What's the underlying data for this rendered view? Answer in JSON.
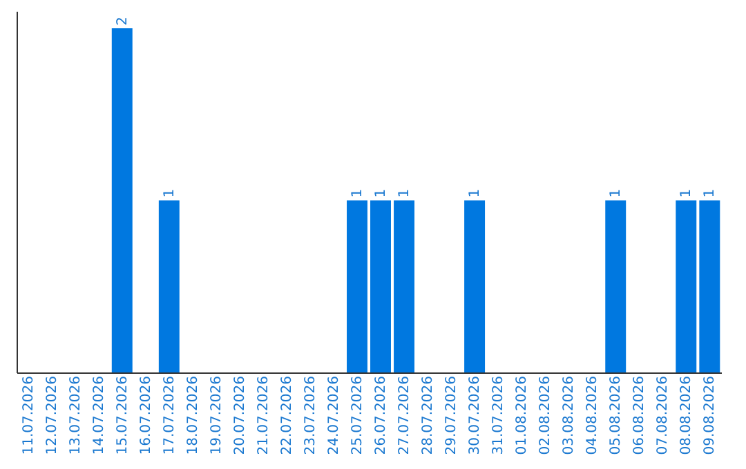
{
  "chart_data": {
    "type": "bar",
    "categories": [
      "11.07.2026",
      "12.07.2026",
      "13.07.2026",
      "14.07.2026",
      "15.07.2026",
      "16.07.2026",
      "17.07.2026",
      "18.07.2026",
      "19.07.2026",
      "20.07.2026",
      "21.07.2026",
      "22.07.2026",
      "23.07.2026",
      "24.07.2026",
      "25.07.2026",
      "26.07.2026",
      "27.07.2026",
      "28.07.2026",
      "29.07.2026",
      "30.07.2026",
      "31.07.2026",
      "01.08.2026",
      "02.08.2026",
      "03.08.2026",
      "04.08.2026",
      "05.08.2026",
      "06.08.2026",
      "07.08.2026",
      "08.08.2026",
      "09.08.2026"
    ],
    "values": [
      0,
      0,
      0,
      0,
      2,
      0,
      1,
      0,
      0,
      0,
      0,
      0,
      0,
      0,
      1,
      1,
      1,
      0,
      0,
      1,
      0,
      0,
      0,
      0,
      0,
      1,
      0,
      0,
      1,
      1
    ],
    "value_labels": [
      null,
      null,
      null,
      null,
      "2",
      null,
      "1",
      null,
      null,
      null,
      null,
      null,
      null,
      null,
      "1",
      "1",
      "1",
      null,
      null,
      "1",
      null,
      null,
      null,
      null,
      null,
      "1",
      null,
      null,
      "1",
      "1"
    ],
    "color": "#0078e0",
    "grid": false,
    "tick_labels": "x"
  }
}
